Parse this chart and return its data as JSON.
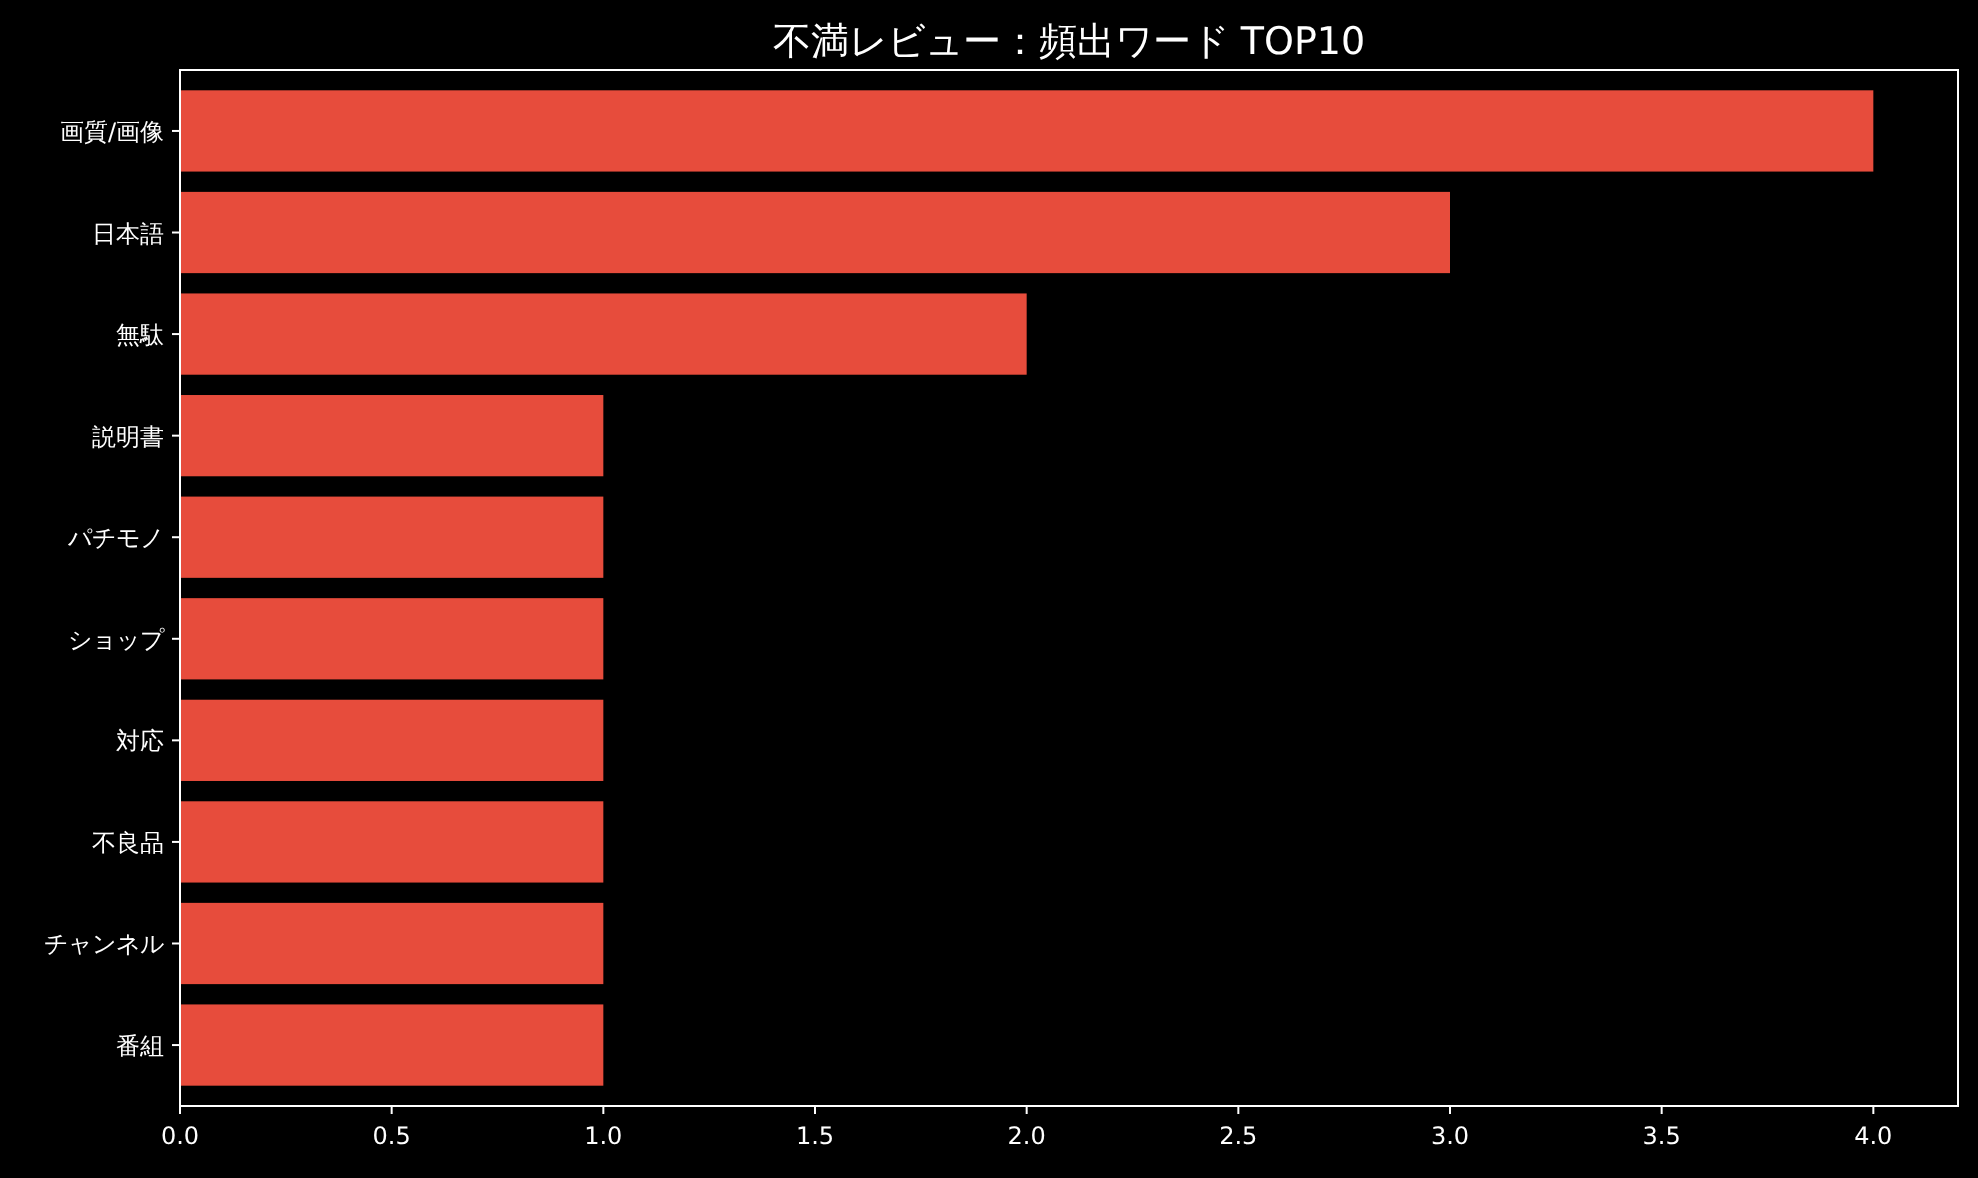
{
  "chart_data": {
    "type": "bar",
    "orientation": "horizontal",
    "title": "不満レビュー：頻出ワード TOP10",
    "categories": [
      "画質/画像",
      "日本語",
      "無駄",
      "説明書",
      "パチモノ",
      "ショップ",
      "対応",
      "不良品",
      "チャンネル",
      "番組"
    ],
    "values": [
      4,
      3,
      2,
      1,
      1,
      1,
      1,
      1,
      1,
      1
    ],
    "color": "#e74c3c",
    "xlim": [
      0,
      4.2
    ],
    "xticks": [
      {
        "value": 0,
        "label": "0.0"
      },
      {
        "value": 0.5,
        "label": "0.5"
      },
      {
        "value": 1,
        "label": "1.0"
      },
      {
        "value": 1.5,
        "label": "1.5"
      },
      {
        "value": 2,
        "label": "2.0"
      },
      {
        "value": 2.5,
        "label": "2.5"
      },
      {
        "value": 3,
        "label": "3.0"
      },
      {
        "value": 3.5,
        "label": "3.5"
      },
      {
        "value": 4,
        "label": "4.0"
      }
    ]
  }
}
